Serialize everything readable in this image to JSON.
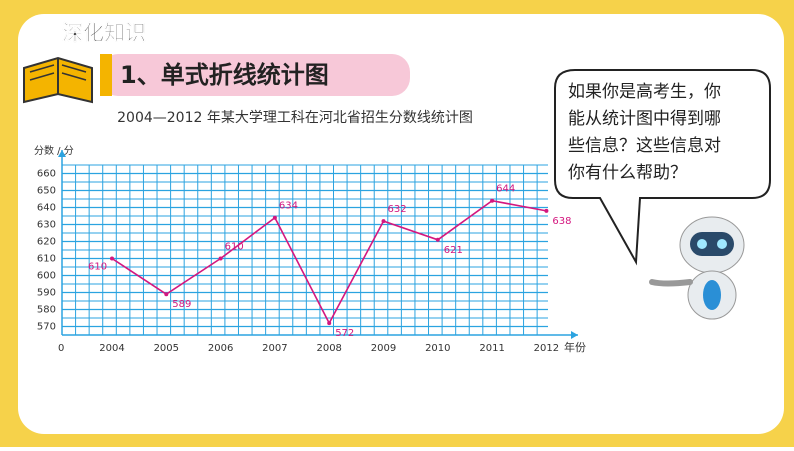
{
  "header": {
    "section": "深化知识",
    "title": "1、单式折线统计图"
  },
  "bubble": {
    "lines": [
      "如果你是高考生，你",
      "能从统计图中得到哪",
      "些信息？这些信息对",
      "你有什么帮助？"
    ]
  },
  "chart_data": {
    "type": "line",
    "title": "2004—2012 年某大学理工科在河北省招生分数线统计图",
    "y_label": "分数 / 分",
    "x_label": "年份",
    "axis_break_label": 0,
    "categories": [
      "2004",
      "2005",
      "2006",
      "2007",
      "2008",
      "2009",
      "2010",
      "2011",
      "2012"
    ],
    "values": [
      610,
      589,
      610,
      634,
      572,
      632,
      621,
      644,
      638
    ],
    "color": "#d4177f",
    "grid_color": "#2ba3e0",
    "ylim": [
      565,
      665
    ],
    "yticks": [
      570,
      580,
      590,
      600,
      610,
      620,
      630,
      640,
      650,
      660
    ],
    "grid": true
  }
}
